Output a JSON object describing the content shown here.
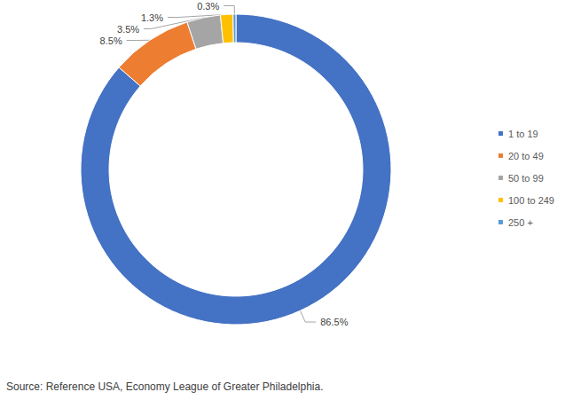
{
  "chart_data": {
    "type": "pie",
    "categories": [
      "1 to 19",
      "20 to 49",
      "50 to 99",
      "100 to 249",
      "250 +"
    ],
    "values": [
      86.5,
      8.5,
      3.5,
      1.3,
      0.3
    ],
    "value_labels": [
      "86.5%",
      "8.5%",
      "3.5%",
      "1.3%",
      "0.3%"
    ],
    "colors": [
      "#4472c4",
      "#ed7d31",
      "#a5a5a5",
      "#ffc000",
      "#5b9bd5"
    ],
    "data_labels": true,
    "legend": "right",
    "source": "Source: Reference USA, Economy League of Greater Philadelphia."
  }
}
